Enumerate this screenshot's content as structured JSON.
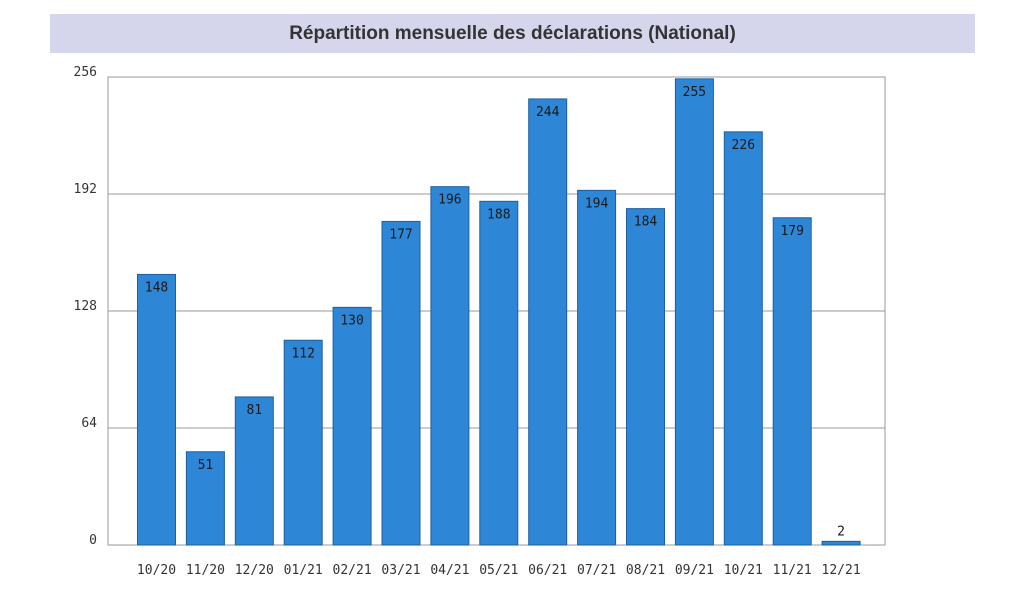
{
  "chart_data": {
    "type": "bar",
    "title": "Répartition mensuelle des déclarations (National)",
    "categories": [
      "10/20",
      "11/20",
      "12/20",
      "01/21",
      "02/21",
      "03/21",
      "04/21",
      "05/21",
      "06/21",
      "07/21",
      "08/21",
      "09/21",
      "10/21",
      "11/21",
      "12/21"
    ],
    "values": [
      148,
      51,
      81,
      112,
      130,
      177,
      196,
      188,
      244,
      194,
      184,
      255,
      226,
      179,
      2
    ],
    "value_labels": [
      "148",
      "51",
      "81",
      "112",
      "130",
      "177",
      "196",
      "188",
      "244",
      "194",
      "184",
      "255",
      "226",
      "179",
      "2"
    ],
    "yticks": [
      "0",
      "64",
      "128",
      "192",
      "256"
    ],
    "ytick_values": [
      0,
      64,
      128,
      192,
      256
    ],
    "ylim": [
      0,
      256
    ],
    "xlabel": "",
    "ylabel": "",
    "grid": true,
    "legend": "none",
    "colors": {
      "bar": "#2e86d6",
      "bar_edge": "#1f5f9e",
      "grid": "#999999",
      "title_background": "#d5d5ec"
    }
  }
}
